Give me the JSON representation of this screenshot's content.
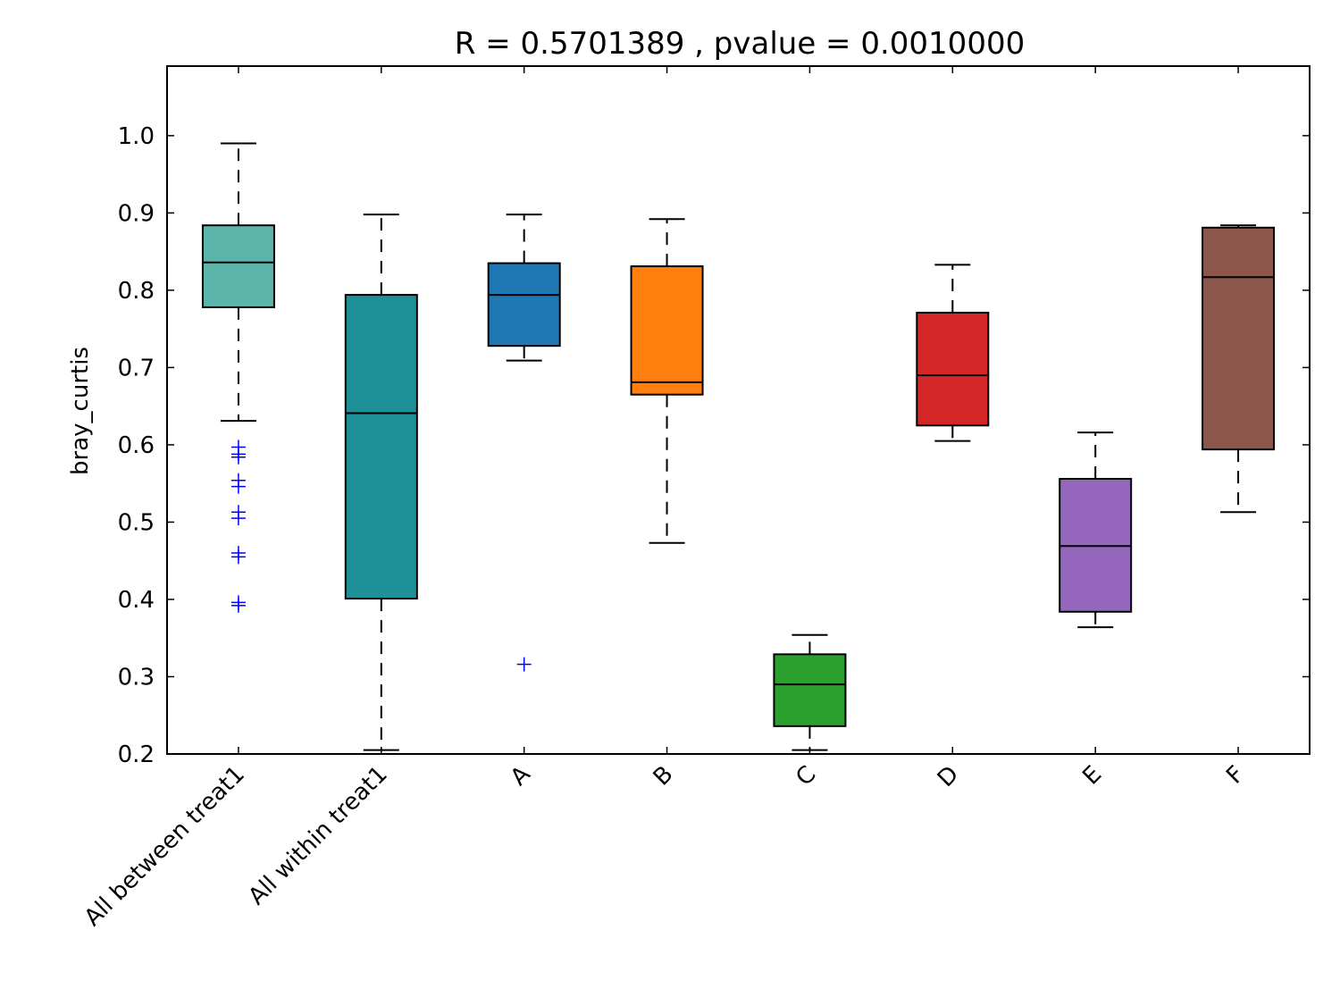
{
  "chart_data": {
    "type": "box",
    "title": "R = 0.5701389 , pvalue = 0.0010000",
    "xlabel": "",
    "ylabel": "bray_curtis",
    "ylim": [
      0.2,
      1.09
    ],
    "yticks": [
      0.2,
      0.3,
      0.4,
      0.5,
      0.6,
      0.7,
      0.8,
      0.9,
      1.0
    ],
    "ytick_labels": [
      "0.2",
      "0.3",
      "0.4",
      "0.5",
      "0.6",
      "0.7",
      "0.8",
      "0.9",
      "1.0"
    ],
    "grid": false,
    "outlier_color": "#0000ff",
    "categories": [
      "All between treat1",
      "All within treat1",
      "A",
      "B",
      "C",
      "D",
      "E",
      "F"
    ],
    "boxes": [
      {
        "category": "All between treat1",
        "whisker_low": 0.631,
        "q1": 0.778,
        "median": 0.836,
        "q3": 0.884,
        "whisker_high": 0.99,
        "outliers": [
          0.597,
          0.588,
          0.584,
          0.554,
          0.546,
          0.513,
          0.505,
          0.46,
          0.455,
          0.396,
          0.392
        ],
        "color": "#5bb5ab"
      },
      {
        "category": "All within treat1",
        "whisker_low": 0.205,
        "q1": 0.401,
        "median": 0.641,
        "q3": 0.794,
        "whisker_high": 0.898,
        "outliers": [],
        "color": "#1d9098"
      },
      {
        "category": "A",
        "whisker_low": 0.709,
        "q1": 0.728,
        "median": 0.794,
        "q3": 0.835,
        "whisker_high": 0.898,
        "outliers": [
          0.316
        ],
        "color": "#1f77b4"
      },
      {
        "category": "B",
        "whisker_low": 0.473,
        "q1": 0.665,
        "median": 0.681,
        "q3": 0.831,
        "whisker_high": 0.892,
        "outliers": [],
        "color": "#ff7f0e"
      },
      {
        "category": "C",
        "whisker_low": 0.205,
        "q1": 0.236,
        "median": 0.29,
        "q3": 0.329,
        "whisker_high": 0.354,
        "outliers": [],
        "color": "#2ca02c"
      },
      {
        "category": "D",
        "whisker_low": 0.605,
        "q1": 0.625,
        "median": 0.69,
        "q3": 0.771,
        "whisker_high": 0.833,
        "outliers": [],
        "color": "#d62728"
      },
      {
        "category": "E",
        "whisker_low": 0.364,
        "q1": 0.384,
        "median": 0.469,
        "q3": 0.556,
        "whisker_high": 0.616,
        "outliers": [],
        "color": "#9467bd"
      },
      {
        "category": "F",
        "whisker_low": 0.513,
        "q1": 0.594,
        "median": 0.817,
        "q3": 0.881,
        "whisker_high": 0.884,
        "outliers": [],
        "color": "#8c564b"
      }
    ]
  }
}
